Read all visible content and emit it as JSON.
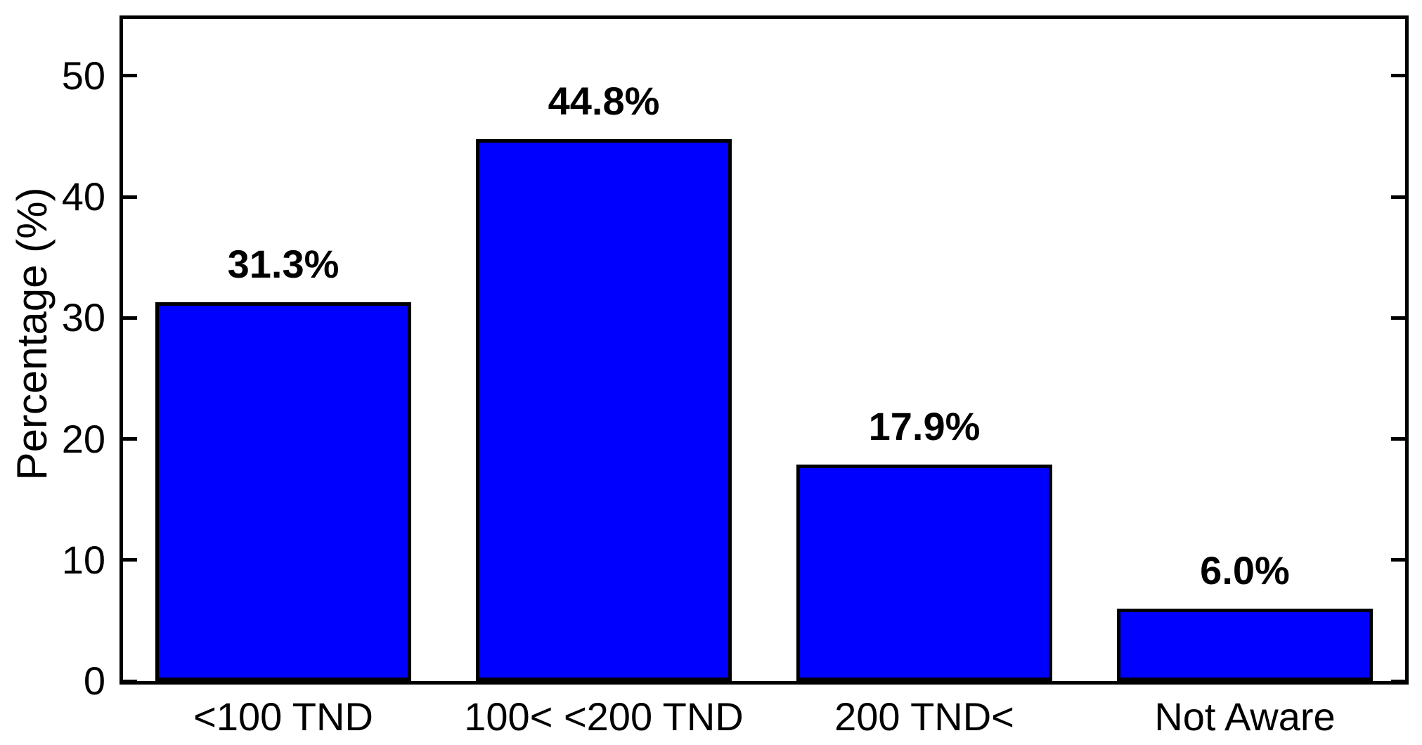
{
  "figure": {
    "background": "#ffffff",
    "text_color": "#000000"
  },
  "chart_data": {
    "type": "bar",
    "title": "",
    "xlabel": "",
    "ylabel": "Percentage (%)",
    "categories": [
      "<100 TND",
      "100< <200 TND",
      "200 TND<",
      "Not Aware"
    ],
    "values": [
      31.3,
      44.8,
      17.9,
      6.0
    ],
    "value_labels": [
      "31.3%",
      "44.8%",
      "17.9%",
      "6.0%"
    ],
    "yticks": [
      0,
      10,
      20,
      30,
      40,
      50
    ],
    "ylim": [
      0,
      54.7
    ],
    "bar_width_frac": 0.8,
    "bar_color": "#0000FF",
    "bar_edge_color": "#000000",
    "axis_color": "#000000",
    "value_label_offset": 1.5,
    "grid": false,
    "legend": null
  }
}
